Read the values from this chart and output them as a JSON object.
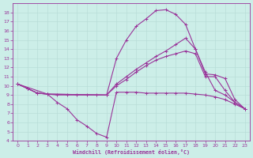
{
  "xlabel": "Windchill (Refroidissement éolien,°C)",
  "background_color": "#cceee8",
  "line_color": "#993399",
  "grid_color": "#b8ddd8",
  "xlim": [
    -0.5,
    23.5
  ],
  "ylim": [
    4,
    19
  ],
  "yticks": [
    4,
    5,
    6,
    7,
    8,
    9,
    10,
    11,
    12,
    13,
    14,
    15,
    16,
    17,
    18
  ],
  "xticks": [
    0,
    1,
    2,
    3,
    4,
    5,
    6,
    7,
    8,
    9,
    10,
    11,
    12,
    13,
    14,
    15,
    16,
    17,
    18,
    19,
    20,
    21,
    22,
    23
  ],
  "lines": [
    {
      "x": [
        0,
        1,
        2,
        3,
        4,
        5,
        6,
        7,
        8,
        9,
        10,
        11,
        12,
        13,
        14,
        15,
        16,
        17,
        18,
        19,
        20,
        21,
        22,
        23
      ],
      "y": [
        10.2,
        9.7,
        9.2,
        9.1,
        8.2,
        7.5,
        6.3,
        5.6,
        4.8,
        4.4,
        9.3,
        9.3,
        9.3,
        9.2,
        9.2,
        9.2,
        9.2,
        9.2,
        9.1,
        9.0,
        8.8,
        8.5,
        8.0,
        7.5
      ]
    },
    {
      "x": [
        0,
        1,
        2,
        3,
        4,
        5,
        6,
        7,
        8,
        9,
        10,
        11,
        12,
        13,
        14,
        15,
        16,
        17,
        18,
        19,
        20,
        21,
        22,
        23
      ],
      "y": [
        10.2,
        9.7,
        9.2,
        9.1,
        9.0,
        9.0,
        9.0,
        9.0,
        9.0,
        9.0,
        13.0,
        15.0,
        16.5,
        17.3,
        18.2,
        18.3,
        17.8,
        16.7,
        14.0,
        11.5,
        9.5,
        9.0,
        8.2,
        7.5
      ]
    },
    {
      "x": [
        0,
        1,
        2,
        3,
        9,
        10,
        11,
        12,
        13,
        14,
        15,
        16,
        17,
        18,
        19,
        20,
        21,
        22,
        23
      ],
      "y": [
        10.2,
        9.7,
        9.2,
        9.1,
        9.0,
        10.2,
        11.0,
        11.8,
        12.5,
        13.2,
        13.8,
        14.5,
        15.2,
        14.0,
        11.3,
        11.2,
        10.8,
        8.5,
        7.5
      ]
    },
    {
      "x": [
        0,
        3,
        9,
        10,
        11,
        12,
        13,
        14,
        15,
        16,
        17,
        18,
        19,
        20,
        21,
        22,
        23
      ],
      "y": [
        10.2,
        9.1,
        9.0,
        10.0,
        10.7,
        11.5,
        12.2,
        12.8,
        13.2,
        13.5,
        13.8,
        13.5,
        11.0,
        11.0,
        9.5,
        8.2,
        7.5
      ]
    }
  ]
}
